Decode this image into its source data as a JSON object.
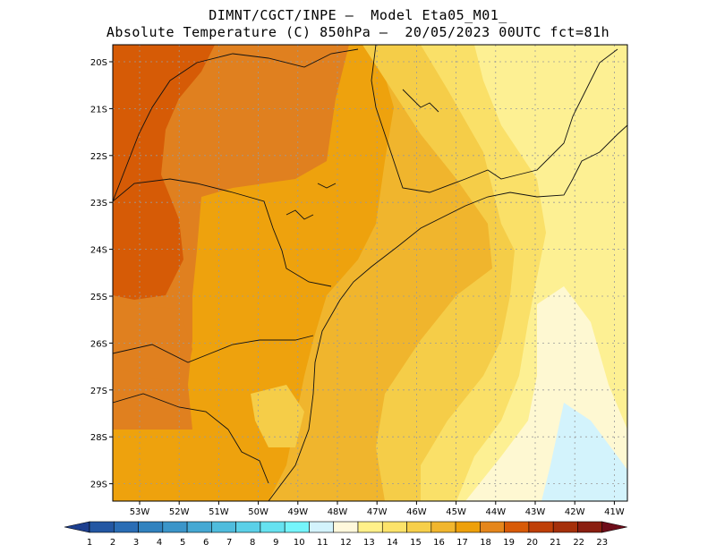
{
  "header": {
    "line1": "DIMNT/CGCT/INPE –  Model Eta05_M01_",
    "line2": "Absolute Temperature (C) 850hPa –  20/05/2023 00UTC fct=81h"
  },
  "map": {
    "lat_labels": [
      "20S",
      "21S",
      "22S",
      "23S",
      "24S",
      "25S",
      "26S",
      "27S",
      "28S",
      "29S"
    ],
    "lon_labels": [
      "53W",
      "52W",
      "51W",
      "50W",
      "49W",
      "48W",
      "47W",
      "46W",
      "45W",
      "44W",
      "43W",
      "42W",
      "41W"
    ],
    "grid": "dotted",
    "colors": {
      "t19": "#d65b06",
      "t18": "#e0801f",
      "t17": "#eea20d",
      "t16": "#f0b52d",
      "t15": "#f5cd48",
      "t14": "#fae068",
      "t13": "#fdf093",
      "t12": "#fef8d2",
      "t11": "#d3f3fc"
    }
  },
  "colorbar": {
    "values": [
      "1",
      "2",
      "3",
      "4",
      "5",
      "6",
      "7",
      "8",
      "9",
      "10",
      "11",
      "12",
      "13",
      "14",
      "15",
      "16",
      "17",
      "18",
      "19",
      "20",
      "21",
      "22",
      "23"
    ],
    "colors": [
      "#1d3f8f",
      "#2357a3",
      "#2a6db5",
      "#3182bf",
      "#3b95c9",
      "#45a8d3",
      "#4fbcdd",
      "#5bd0e8",
      "#66e2f0",
      "#75f5fb",
      "#d3f3fc",
      "#fff8dc",
      "#fff089",
      "#fce36a",
      "#f7cf4a",
      "#f1b62e",
      "#eea00a",
      "#e5861b",
      "#d85a06",
      "#bf3f07",
      "#a5300a",
      "#8a1e10",
      "#6e0d1a"
    ]
  }
}
